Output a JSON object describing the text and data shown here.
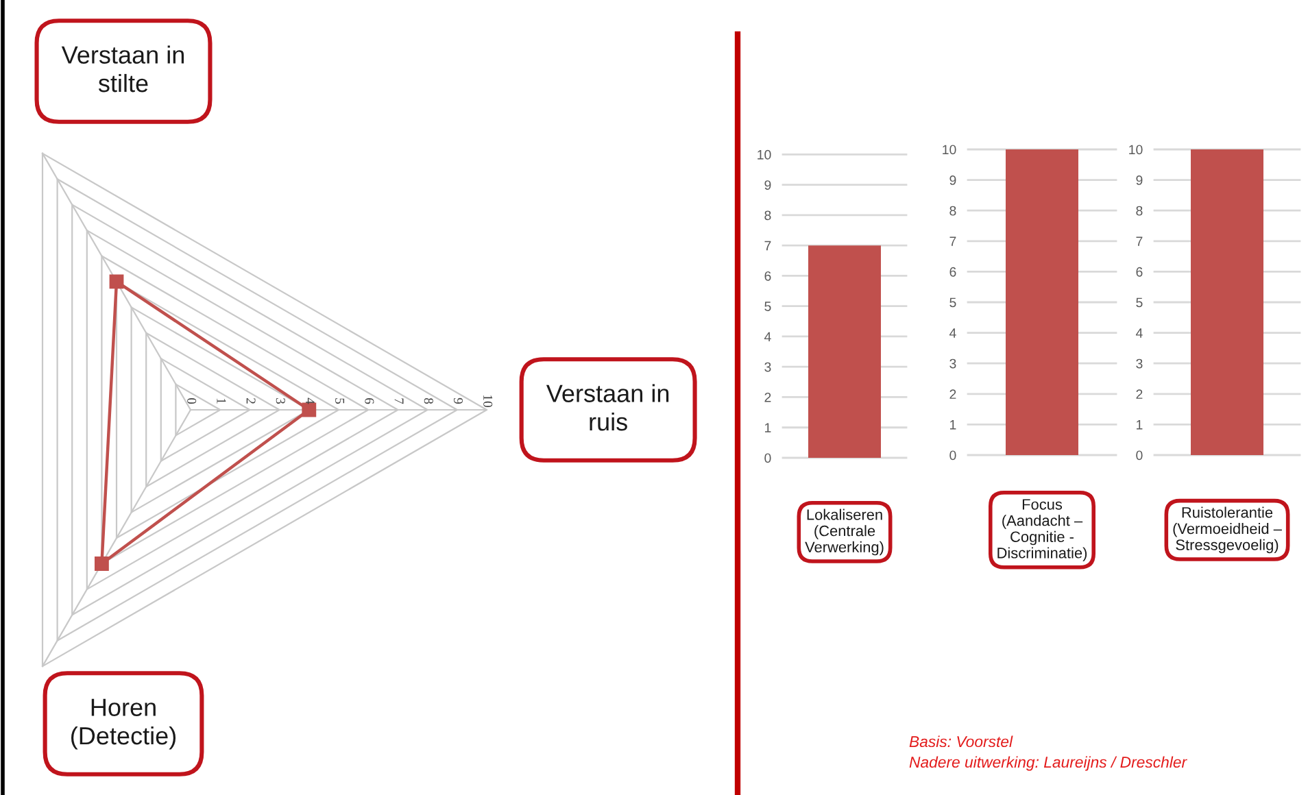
{
  "chart_data": [
    {
      "type": "radar",
      "categories": [
        "Verstaan in\nstilte",
        "Verstaan in\nruis",
        "Horen\n(Detectie)"
      ],
      "series": [
        {
          "color": "#c0504d",
          "values": [
            5,
            4,
            6
          ]
        }
      ],
      "ylim": [
        0,
        10
      ],
      "yticks": [
        0,
        1,
        2,
        3,
        4,
        5,
        6,
        7,
        8,
        9,
        10
      ],
      "grid": true,
      "marker": "square"
    },
    {
      "type": "bar",
      "categories": [
        "Lokaliseren\n(Centrale\nVerwerking)"
      ],
      "values": [
        7
      ],
      "color": "#c0504d",
      "ylim": [
        0,
        10
      ],
      "yticks": [
        0,
        1,
        2,
        3,
        4,
        5,
        6,
        7,
        8,
        9,
        10
      ],
      "grid": "y"
    },
    {
      "type": "bar",
      "categories": [
        "Focus\n(Aandacht –\nCognitie -\nDiscriminatie)"
      ],
      "values": [
        10
      ],
      "color": "#c0504d",
      "ylim": [
        0,
        10
      ],
      "yticks": [
        0,
        1,
        2,
        3,
        4,
        5,
        6,
        7,
        8,
        9,
        10
      ],
      "grid": "y"
    },
    {
      "type": "bar",
      "categories": [
        "Ruistolerantie\n(Vermoeidheid –\nStressgevoelig)"
      ],
      "values": [
        10
      ],
      "color": "#c0504d",
      "ylim": [
        0,
        10
      ],
      "yticks": [
        0,
        1,
        2,
        3,
        4,
        5,
        6,
        7,
        8,
        9,
        10
      ],
      "grid": "y",
      "annotations": [
        "Basis: Voorstel",
        "Nadere uitwerking: Laureijns / Dreschler"
      ]
    }
  ]
}
